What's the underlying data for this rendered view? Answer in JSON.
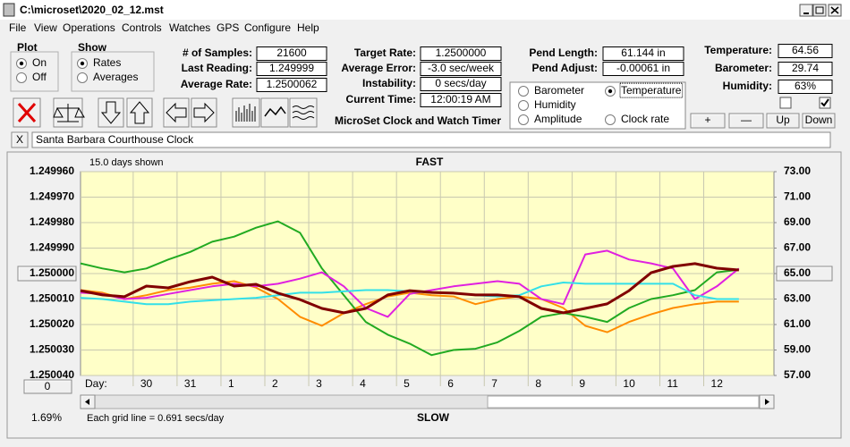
{
  "window": {
    "title": "C:\\microset\\2020_02_12.mst"
  },
  "menu": [
    "File",
    "View",
    "Operations",
    "Controls",
    "Watches",
    "GPS",
    "Configure",
    "Help"
  ],
  "plot_group": {
    "title": "Plot",
    "options": [
      {
        "label": "On",
        "checked": true
      },
      {
        "label": "Off",
        "checked": false
      }
    ]
  },
  "show_group": {
    "title": "Show",
    "options": [
      {
        "label": "Rates",
        "checked": true
      },
      {
        "label": "Averages",
        "checked": false
      }
    ]
  },
  "samples": [
    {
      "label": "# of Samples:",
      "value": "21600"
    },
    {
      "label": "Last Reading:",
      "value": "1.249999"
    },
    {
      "label": "Average Rate:",
      "value": "1.2500062"
    }
  ],
  "rates": [
    {
      "label": "Target Rate:",
      "value": "1.2500000"
    },
    {
      "label": "Average Error:",
      "value": "-3.0 sec/week"
    },
    {
      "label": "Instability:",
      "value": "0 secs/day"
    },
    {
      "label": "Current Time:",
      "value": "12:00:19 AM"
    }
  ],
  "pendulum": [
    {
      "label": "Pend Length:",
      "value": "61.144 in"
    },
    {
      "label": "Pend Adjust:",
      "value": "-0.00061 in"
    }
  ],
  "environment": [
    {
      "label": "Temperature:",
      "value": "64.56"
    },
    {
      "label": "Barometer:",
      "value": "29.74"
    },
    {
      "label": "Humidity:",
      "value": "63%"
    }
  ],
  "checkboxes": [
    false,
    true
  ],
  "adjust_buttons": [
    "+",
    "—",
    "Up",
    "Down"
  ],
  "app_title": "MicroSet Clock and Watch Timer",
  "clear_button": "X",
  "clock_name": "Santa Barbara Courthouse Clock",
  "offset_button": "0",
  "percent": "1.69%",
  "chart_data": {
    "type": "line",
    "days_shown": "15.0 days shown",
    "top_label": "FAST",
    "bottom_label": "SLOW",
    "x_label": "Day:",
    "grid_note": "Each grid line = 0.691 secs/day",
    "x": [
      0,
      0.5,
      1,
      1.5,
      2,
      2.5,
      3,
      3.5,
      4,
      4.5,
      5,
      5.5,
      6,
      6.5,
      7,
      7.5,
      8,
      8.5,
      9,
      9.5,
      10,
      10.5,
      11,
      11.5,
      12,
      12.5,
      13,
      13.5,
      14,
      14.5,
      15
    ],
    "xlim": [
      0,
      15.8
    ],
    "xticks": [
      {
        "value": 1.2,
        "label": "30"
      },
      {
        "value": 2.2,
        "label": "31"
      },
      {
        "value": 3.2,
        "label": "1"
      },
      {
        "value": 4.2,
        "label": "2"
      },
      {
        "value": 5.2,
        "label": "3"
      },
      {
        "value": 6.2,
        "label": "4"
      },
      {
        "value": 7.2,
        "label": "5"
      },
      {
        "value": 8.2,
        "label": "6"
      },
      {
        "value": 9.2,
        "label": "7"
      },
      {
        "value": 10.2,
        "label": "8"
      },
      {
        "value": 11.2,
        "label": "9"
      },
      {
        "value": 12.2,
        "label": "10"
      },
      {
        "value": 13.2,
        "label": "11"
      },
      {
        "value": 14.2,
        "label": "12"
      }
    ],
    "ylim": [
      1.25004,
      1.24996
    ],
    "yticks": [
      {
        "value": 1.24996,
        "label": "1.249960"
      },
      {
        "value": 1.24997,
        "label": "1.249970"
      },
      {
        "value": 1.24998,
        "label": "1.249980"
      },
      {
        "value": 1.24999,
        "label": "1.249990"
      },
      {
        "value": 1.25,
        "label": "1.250000"
      },
      {
        "value": 1.25001,
        "label": "1.250010"
      },
      {
        "value": 1.25002,
        "label": "1.250020"
      },
      {
        "value": 1.25003,
        "label": "1.250030"
      },
      {
        "value": 1.25004,
        "label": "1.250040"
      }
    ],
    "y2lim": [
      57,
      73
    ],
    "y2ticks": [
      {
        "value": 73,
        "label": "73.00"
      },
      {
        "value": 71,
        "label": "71.00"
      },
      {
        "value": 69,
        "label": "69.00"
      },
      {
        "value": 67,
        "label": "67.00"
      },
      {
        "value": 65,
        "label": "65.00"
      },
      {
        "value": 63,
        "label": "63.00"
      },
      {
        "value": 61,
        "label": "61.00"
      },
      {
        "value": 59,
        "label": "59.00"
      },
      {
        "value": 57,
        "label": "57.00"
      }
    ],
    "grid": true,
    "series": [
      {
        "name": "Barometer",
        "color": "#ff8c00",
        "axis": "y2",
        "selected": false,
        "values": [
          63.7,
          63.5,
          63.0,
          63.3,
          63.7,
          63.9,
          64.2,
          64.4,
          63.9,
          63.0,
          61.6,
          60.9,
          61.9,
          62.6,
          63.2,
          63.5,
          63.3,
          63.2,
          62.6,
          63.0,
          63.2,
          63.0,
          62.3,
          60.9,
          60.4,
          61.2,
          61.8,
          62.3,
          62.6,
          62.8,
          62.8
        ]
      },
      {
        "name": "Temperature",
        "color": "#22aa22",
        "axis": "y2",
        "selected": true,
        "values": [
          65.8,
          65.4,
          65.1,
          65.4,
          66.1,
          66.7,
          67.5,
          67.9,
          68.6,
          69.1,
          68.2,
          65.4,
          63.3,
          61.2,
          60.2,
          59.5,
          58.6,
          59.0,
          59.1,
          59.6,
          60.5,
          61.6,
          61.9,
          61.6,
          61.2,
          62.3,
          63.0,
          63.3,
          63.7,
          65.1,
          65.3
        ]
      },
      {
        "name": "Humidity",
        "color": "#e020e0",
        "axis": "y2",
        "selected": false,
        "values": [
          63.5,
          63.4,
          63.0,
          63.1,
          63.4,
          63.7,
          64.0,
          64.2,
          64.0,
          64.2,
          64.6,
          65.1,
          64.0,
          62.3,
          61.6,
          63.4,
          63.7,
          64.0,
          64.2,
          64.4,
          64.2,
          63.0,
          62.6,
          66.5,
          66.8,
          66.1,
          65.8,
          65.4,
          63.0,
          64.0,
          65.4
        ]
      },
      {
        "name": "Amplitude",
        "color": "#33e0e8",
        "axis": "y2",
        "selected": false,
        "values": [
          63.1,
          63.0,
          62.8,
          62.6,
          62.6,
          62.8,
          62.9,
          63.0,
          63.1,
          63.3,
          63.5,
          63.5,
          63.6,
          63.7,
          63.7,
          63.6,
          63.5,
          63.5,
          63.3,
          63.2,
          63.3,
          64.0,
          64.3,
          64.2,
          64.2,
          64.2,
          64.2,
          64.2,
          63.3,
          63.0,
          63.0
        ]
      },
      {
        "name": "Clock rate",
        "color": "#800000",
        "axis": "y",
        "selected": false,
        "values": [
          1.2500067,
          1.2500084,
          1.2500091,
          1.2500049,
          1.2500056,
          1.2500032,
          1.2500014,
          1.2500049,
          1.2500042,
          1.2500077,
          1.2500102,
          1.2500137,
          1.2500154,
          1.2500137,
          1.2500084,
          1.2500067,
          1.2500074,
          1.2500077,
          1.2500084,
          1.2500084,
          1.2500091,
          1.2500137,
          1.2500154,
          1.2500137,
          1.2500119,
          1.2500067,
          1.2499997,
          1.2499972,
          1.2499961,
          1.2499979,
          1.2499986
        ]
      }
    ]
  }
}
